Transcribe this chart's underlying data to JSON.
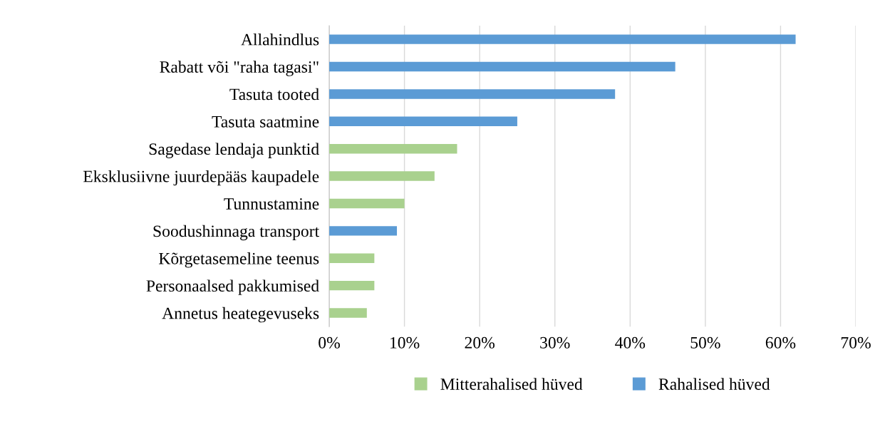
{
  "chart_data": {
    "type": "bar",
    "orientation": "horizontal",
    "categories": [
      "Allahindlus",
      "Rabatt või \"raha tagasi\"",
      "Tasuta tooted",
      "Tasuta saatmine",
      "Sagedase lendaja punktid",
      "Eksklusiivne juurdepääs kaupadele",
      "Tunnustamine",
      "Soodushinnaga transport",
      "Kõrgetasemeline teenus",
      "Personaalsed pakkumised",
      "Annetus heategevuseks"
    ],
    "series": [
      {
        "name": "Mitterahalised hüved",
        "color": "#a9d18e",
        "values": [
          null,
          null,
          null,
          null,
          17,
          14,
          10,
          null,
          6,
          6,
          5
        ]
      },
      {
        "name": "Rahalised hüved",
        "color": "#5b9bd5",
        "values": [
          62,
          46,
          38,
          25,
          null,
          null,
          null,
          9,
          null,
          null,
          null
        ]
      }
    ],
    "xlim": [
      0,
      70
    ],
    "xticks": [
      {
        "value": 0,
        "label": "0%"
      },
      {
        "value": 10,
        "label": "10%"
      },
      {
        "value": 20,
        "label": "20%"
      },
      {
        "value": 30,
        "label": "30%"
      },
      {
        "value": 40,
        "label": "40%"
      },
      {
        "value": 50,
        "label": "50%"
      },
      {
        "value": 60,
        "label": "60%"
      },
      {
        "value": 70,
        "label": "70%"
      }
    ],
    "grid": "x",
    "legend": "bottom"
  }
}
